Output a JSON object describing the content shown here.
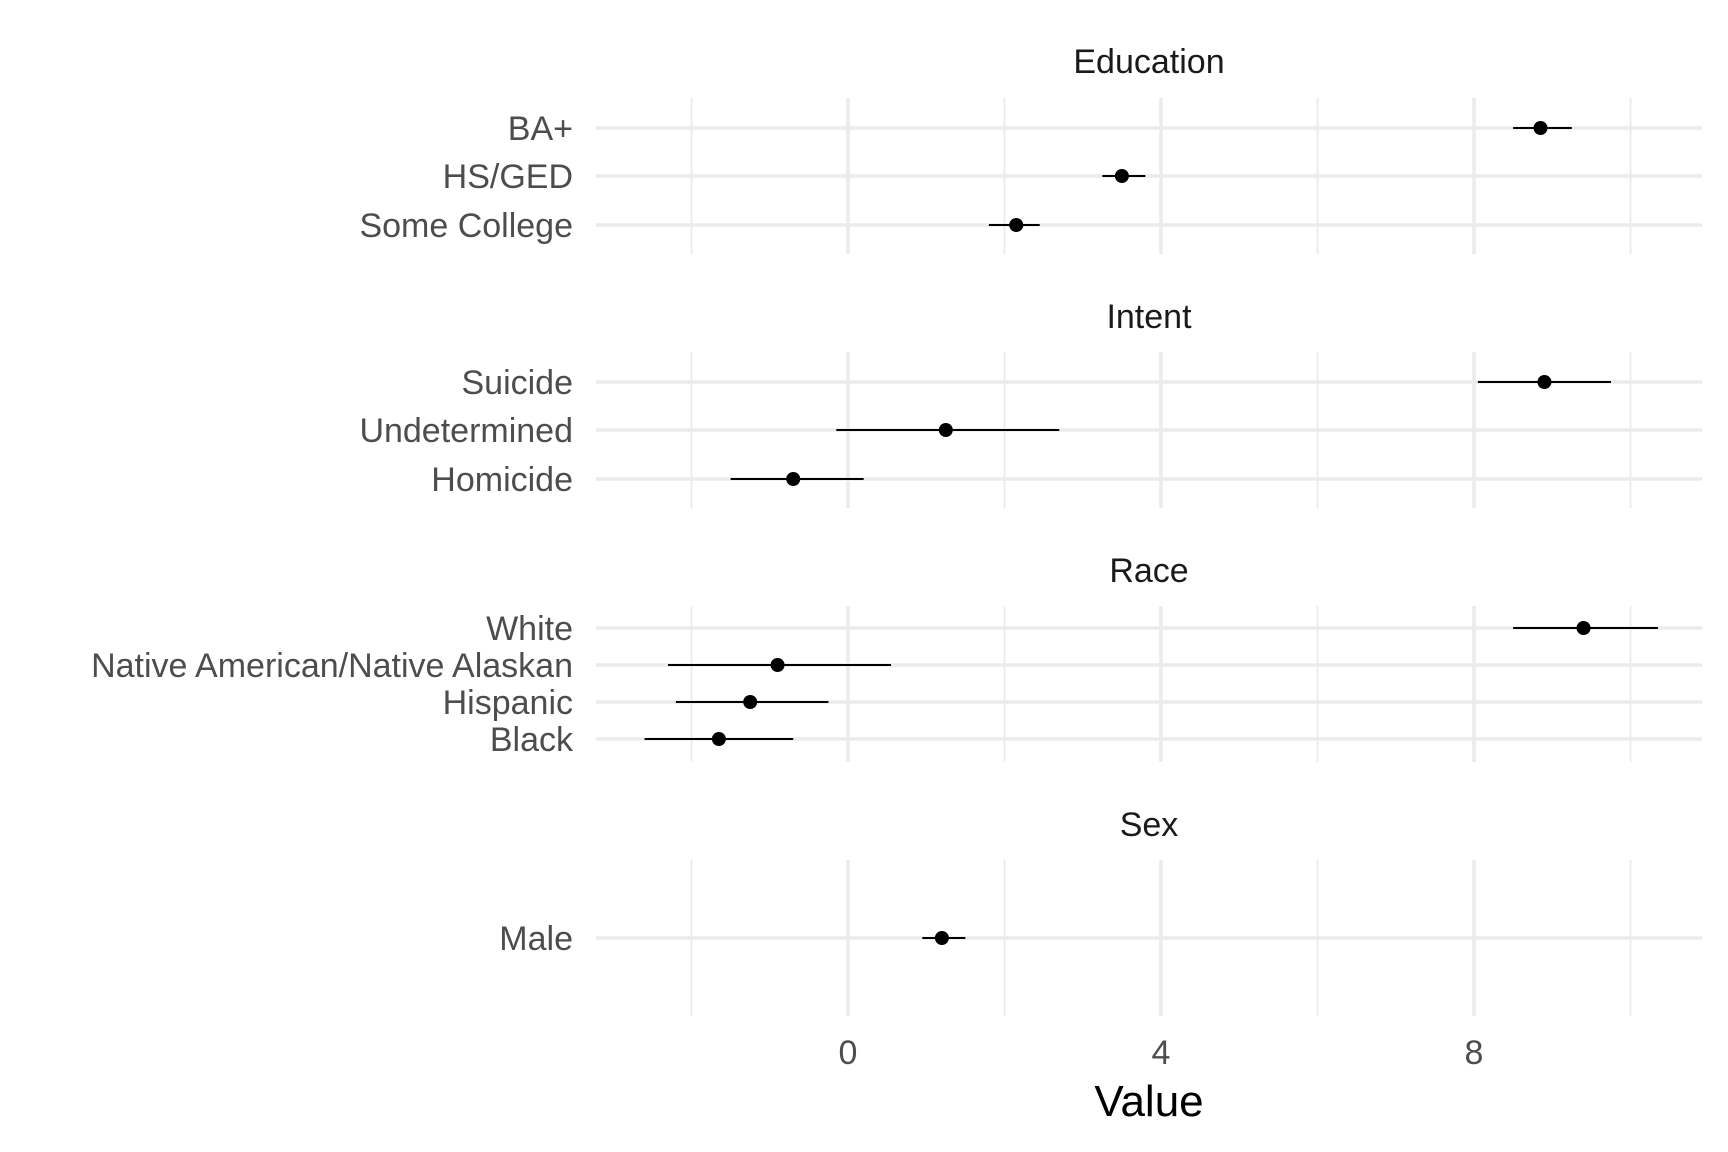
{
  "chart_data": {
    "type": "scatter",
    "title": "",
    "xlabel": "Value",
    "ylabel": "",
    "xlim": [
      -3.25,
      10.9
    ],
    "x_ticks": [
      0,
      4,
      8
    ],
    "x_tick_labels": [
      "0",
      "4",
      "8"
    ],
    "x_minor": [
      -2,
      2,
      6,
      10
    ],
    "grid": true,
    "legend": "none",
    "facets": [
      {
        "title": "Education",
        "categories": [
          "BA+",
          "HS/GED",
          "Some College"
        ],
        "estimate": [
          8.85,
          3.5,
          2.15
        ],
        "low": [
          8.5,
          3.25,
          1.8
        ],
        "high": [
          9.25,
          3.8,
          2.45
        ]
      },
      {
        "title": "Intent",
        "categories": [
          "Suicide",
          "Undetermined",
          "Homicide"
        ],
        "estimate": [
          8.9,
          1.25,
          -0.7
        ],
        "low": [
          8.05,
          -0.15,
          -1.5
        ],
        "high": [
          9.75,
          2.7,
          0.2
        ]
      },
      {
        "title": "Race",
        "categories": [
          "White",
          "Native American/Native Alaskan",
          "Hispanic",
          "Black"
        ],
        "estimate": [
          9.4,
          -0.9,
          -1.25,
          -1.65
        ],
        "low": [
          8.5,
          -2.3,
          -2.2,
          -2.6
        ],
        "high": [
          10.35,
          0.55,
          -0.25,
          -0.7
        ]
      },
      {
        "title": "Sex",
        "categories": [
          "Male"
        ],
        "estimate": [
          1.2
        ],
        "low": [
          0.95
        ],
        "high": [
          1.5
        ]
      }
    ]
  }
}
